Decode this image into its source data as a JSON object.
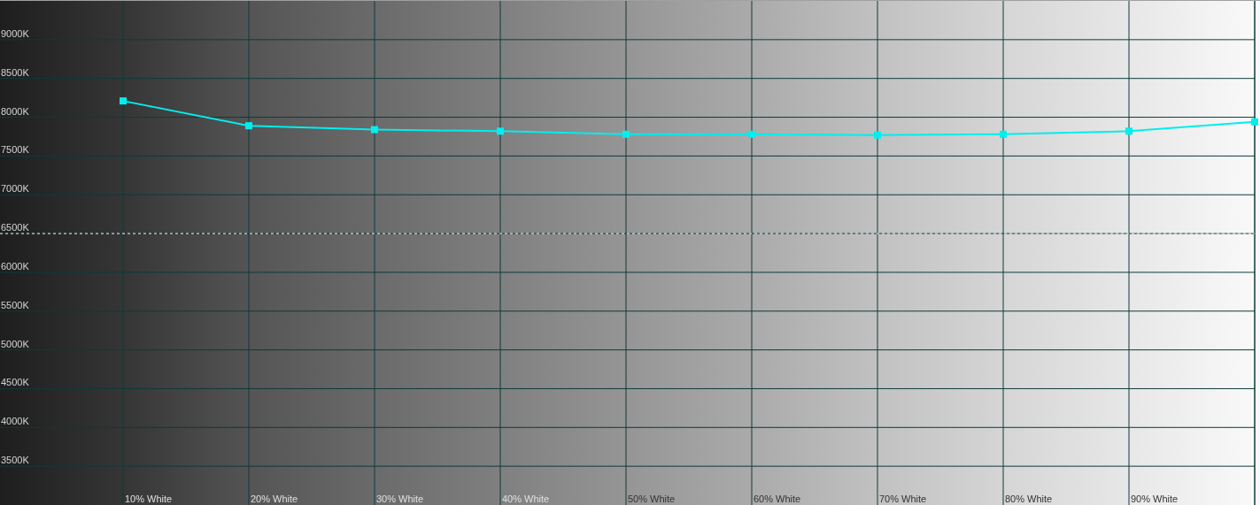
{
  "chart_data": {
    "type": "line",
    "categories": [
      "10% White",
      "20% White",
      "30% White",
      "40% White",
      "50% White",
      "60% White",
      "70% White",
      "80% White",
      "90% White",
      null
    ],
    "series": [
      {
        "color": "#00eeee",
        "values": [
          8210,
          7890,
          7840,
          7820,
          7780,
          7780,
          7770,
          7780,
          7820,
          7940
        ]
      }
    ],
    "ylim": [
      3000,
      9500
    ],
    "yticks": [
      {
        "value": 3500,
        "label": "3500K"
      },
      {
        "value": 4000,
        "label": "4000K"
      },
      {
        "value": 4500,
        "label": "4500K"
      },
      {
        "value": 5000,
        "label": "5000K"
      },
      {
        "value": 5500,
        "label": "5500K"
      },
      {
        "value": 6000,
        "label": "6000K"
      },
      {
        "value": 6500,
        "label": "6500K"
      },
      {
        "value": 7000,
        "label": "7000K"
      },
      {
        "value": 7500,
        "label": "7500K"
      },
      {
        "value": 8000,
        "label": "8000K"
      },
      {
        "value": 8500,
        "label": "8500K"
      },
      {
        "value": 9000,
        "label": "9000K"
      }
    ],
    "grid": true,
    "marker": "square",
    "ref_lines": [
      {
        "axis": "y",
        "value": 6500,
        "line_style": "dashed",
        "color": "#ffffff"
      }
    ]
  }
}
